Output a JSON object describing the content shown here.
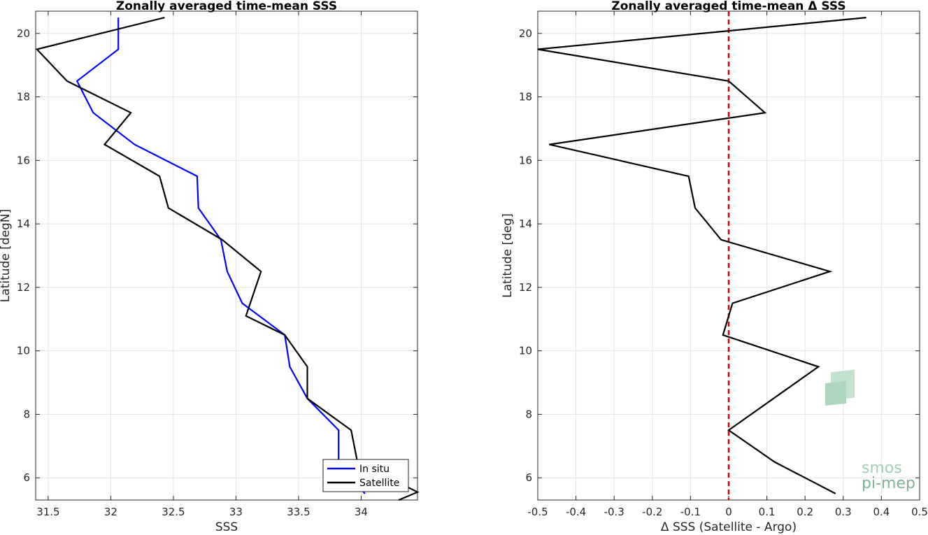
{
  "chart_data": [
    {
      "type": "line",
      "title": "Zonally averaged time-mean SSS",
      "xlabel": "SSS",
      "ylabel": "Latitude [degN]",
      "xlim": [
        31.4,
        34.45
      ],
      "ylim": [
        5.3,
        20.7
      ],
      "xticks": [
        31.5,
        32,
        32.5,
        33,
        33.5,
        34
      ],
      "yticks": [
        6,
        8,
        10,
        12,
        14,
        16,
        18,
        20
      ],
      "grid": true,
      "legend": "bottom-right",
      "series": [
        {
          "name": "In situ",
          "color": "#0000ff",
          "points": [
            [
              32.06,
              20.5
            ],
            [
              32.06,
              19.5
            ],
            [
              31.73,
              18.5
            ],
            [
              31.86,
              17.5
            ],
            [
              32.19,
              16.5
            ],
            [
              32.69,
              15.5
            ],
            [
              32.7,
              14.5
            ],
            [
              32.88,
              13.5
            ],
            [
              32.93,
              12.5
            ],
            [
              33.05,
              11.5
            ],
            [
              33.39,
              10.5
            ],
            [
              33.43,
              9.5
            ],
            [
              33.57,
              8.5
            ],
            [
              33.82,
              7.5
            ],
            [
              33.82,
              6.5
            ],
            [
              34.03,
              5.5
            ]
          ]
        },
        {
          "name": "Satellite",
          "color": "#000000",
          "points": [
            [
              32.43,
              20.5
            ],
            [
              31.41,
              19.5
            ],
            [
              31.65,
              18.5
            ],
            [
              32.16,
              17.5
            ],
            [
              31.95,
              16.5
            ],
            [
              32.39,
              15.5
            ],
            [
              32.46,
              14.5
            ],
            [
              32.89,
              13.5
            ],
            [
              33.2,
              12.5
            ],
            [
              33.08,
              11.1
            ],
            [
              33.39,
              10.5
            ],
            [
              33.57,
              9.5
            ],
            [
              33.57,
              8.5
            ],
            [
              33.92,
              7.5
            ],
            [
              33.97,
              6.5
            ],
            [
              34.45,
              5.55
            ],
            [
              34.3,
              5.3
            ]
          ]
        }
      ]
    },
    {
      "type": "line",
      "title": "Zonally averaged time-mean Δ SSS",
      "xlabel": "Δ SSS (Satellite - Argo)",
      "ylabel": "Latitude [deg]",
      "xlim": [
        -0.5,
        0.5
      ],
      "ylim": [
        5.3,
        20.7
      ],
      "xticks": [
        -0.5,
        -0.4,
        -0.3,
        -0.2,
        -0.1,
        0,
        0.1,
        0.2,
        0.3,
        0.4,
        0.5
      ],
      "xticklabels": [
        "-0.5",
        "-0.4",
        "-0.3",
        "-0.2",
        "-0.1",
        "0",
        "0.1",
        "0.2",
        "0.3",
        "0.4",
        "0.5"
      ],
      "yticks": [
        6,
        8,
        10,
        12,
        14,
        16,
        18,
        20
      ],
      "grid": true,
      "reference_line": {
        "x": 0,
        "color": "#dd0000",
        "style": "dashed"
      },
      "series": [
        {
          "color": "#000000",
          "points": [
            [
              0.36,
              20.5
            ],
            [
              -0.5,
              19.5
            ],
            [
              0.0,
              18.5
            ],
            [
              0.095,
              17.5
            ],
            [
              -0.47,
              16.5
            ],
            [
              -0.105,
              15.5
            ],
            [
              -0.088,
              14.5
            ],
            [
              -0.02,
              13.5
            ],
            [
              0.265,
              12.5
            ],
            [
              0.01,
              11.5
            ],
            [
              -0.015,
              10.5
            ],
            [
              0.235,
              9.5
            ],
            [
              0.0,
              7.5
            ],
            [
              0.12,
              6.5
            ],
            [
              0.28,
              5.5
            ]
          ]
        }
      ]
    }
  ],
  "logo": {
    "line1": "smos",
    "line2": "pi-mep"
  }
}
